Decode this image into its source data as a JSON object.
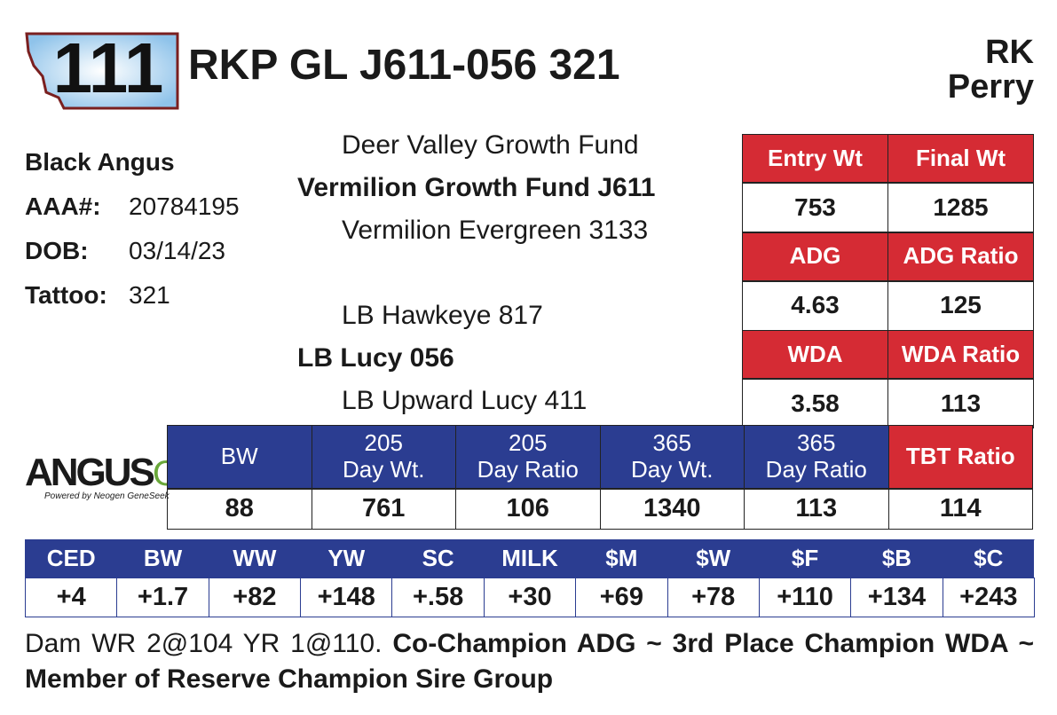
{
  "lot": "111",
  "name": "RKP GL J611-056 321",
  "owner": [
    "RK",
    "Perry"
  ],
  "breed": "Black Angus",
  "info": [
    {
      "label": "AAA#:",
      "value": "20784195"
    },
    {
      "label": "DOB:",
      "value": "03/14/23"
    },
    {
      "label": "Tattoo:",
      "value": "321"
    }
  ],
  "pedigree": {
    "sire_sire": "Deer Valley Growth Fund",
    "sire": "Vermilion Growth Fund J611",
    "sire_dam": "Vermilion Evergreen 3133",
    "dam_sire": "LB Hawkeye 817",
    "dam": "LB Lucy 056",
    "dam_dam": "LB Upward Lucy 411"
  },
  "test": [
    {
      "label": "Entry Wt",
      "value": "753"
    },
    {
      "label": "Final Wt",
      "value": "1285"
    },
    {
      "label": "ADG",
      "value": "4.63"
    },
    {
      "label": "ADG Ratio",
      "value": "125"
    },
    {
      "label": "WDA",
      "value": "3.58"
    },
    {
      "label": "WDA Ratio",
      "value": "113"
    }
  ],
  "performance": [
    {
      "label": [
        "BW"
      ],
      "value": "88"
    },
    {
      "label": [
        "205",
        "Day Wt."
      ],
      "value": "761"
    },
    {
      "label": [
        "205",
        "Day Ratio"
      ],
      "value": "106"
    },
    {
      "label": [
        "365",
        "Day Wt."
      ],
      "value": "1340"
    },
    {
      "label": [
        "365",
        "Day Ratio"
      ],
      "value": "113"
    },
    {
      "label": [
        "TBT Ratio"
      ],
      "value": "114"
    }
  ],
  "epds": [
    {
      "label": "CED",
      "value": "+4"
    },
    {
      "label": "BW",
      "value": "+1.7"
    },
    {
      "label": "WW",
      "value": "+82"
    },
    {
      "label": "YW",
      "value": "+148"
    },
    {
      "label": "SC",
      "value": "+.58"
    },
    {
      "label": "MILK",
      "value": "+30"
    },
    {
      "label": "$M",
      "value": "+69"
    },
    {
      "label": "$W",
      "value": "+78"
    },
    {
      "label": "$F",
      "value": "+110"
    },
    {
      "label": "$B",
      "value": "+134"
    },
    {
      "label": "$C",
      "value": "+243"
    }
  ],
  "logo": {
    "main": "ANGUS",
    "suffix": "GS",
    "tagline": "Powered by Neogen GeneSeek"
  },
  "notes": {
    "plain": "Dam WR 2@104 YR 1@110.",
    "bold": "Co-Champion ADG ~ 3rd Place Champion WDA ~ Member of Reserve Champion Sire Group"
  }
}
